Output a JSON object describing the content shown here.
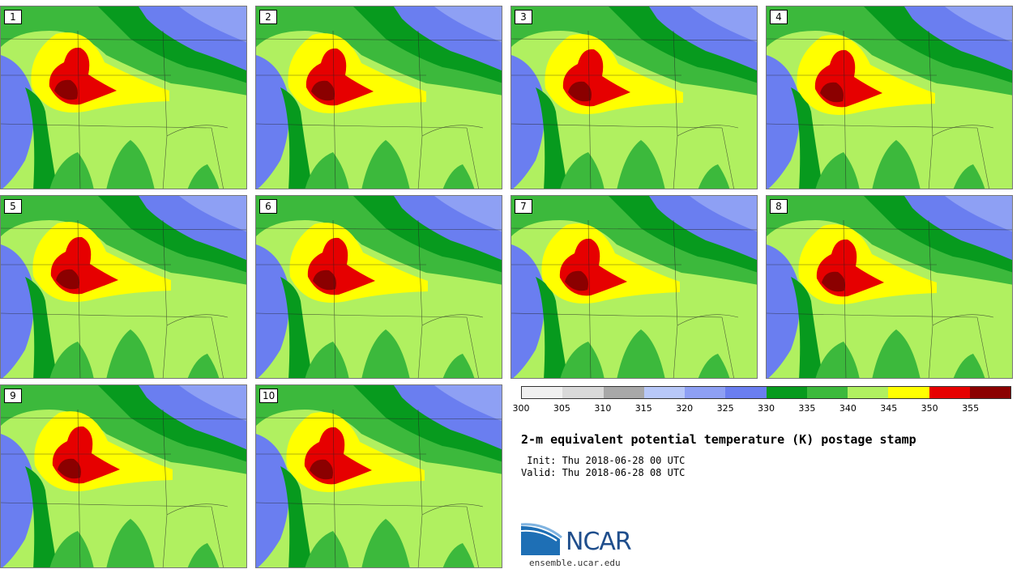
{
  "title": "2-m equivalent potential temperature (K) postage stamp",
  "init_line": " Init: Thu 2018-06-28 00 UTC",
  "valid_line": "Valid: Thu 2018-06-28 08 UTC",
  "logo_text": "NCAR",
  "site": "ensemble.ucar.edu",
  "members": [
    "1",
    "2",
    "3",
    "4",
    "5",
    "6",
    "7",
    "8",
    "9",
    "10"
  ],
  "colorbar": {
    "ticks": [
      "300",
      "305",
      "310",
      "315",
      "320",
      "325",
      "330",
      "335",
      "340",
      "345",
      "350",
      "355"
    ],
    "colors": [
      "#f0f0f0",
      "#d9d9d9",
      "#a8a8a8",
      "#b8c8f8",
      "#8ea0f4",
      "#6a7ef0",
      "#079a1e",
      "#3cb93c",
      "#b0f060",
      "#ffff00",
      "#e60000",
      "#8b0000"
    ]
  },
  "colors": {
    "background": "#b0f060",
    "water": "#6a7ef0",
    "cool": "#8ea0f4",
    "green_dark": "#079a1e",
    "green": "#3cb93c",
    "yellow": "#ffff00",
    "red": "#e60000",
    "darkred": "#8b0000"
  }
}
